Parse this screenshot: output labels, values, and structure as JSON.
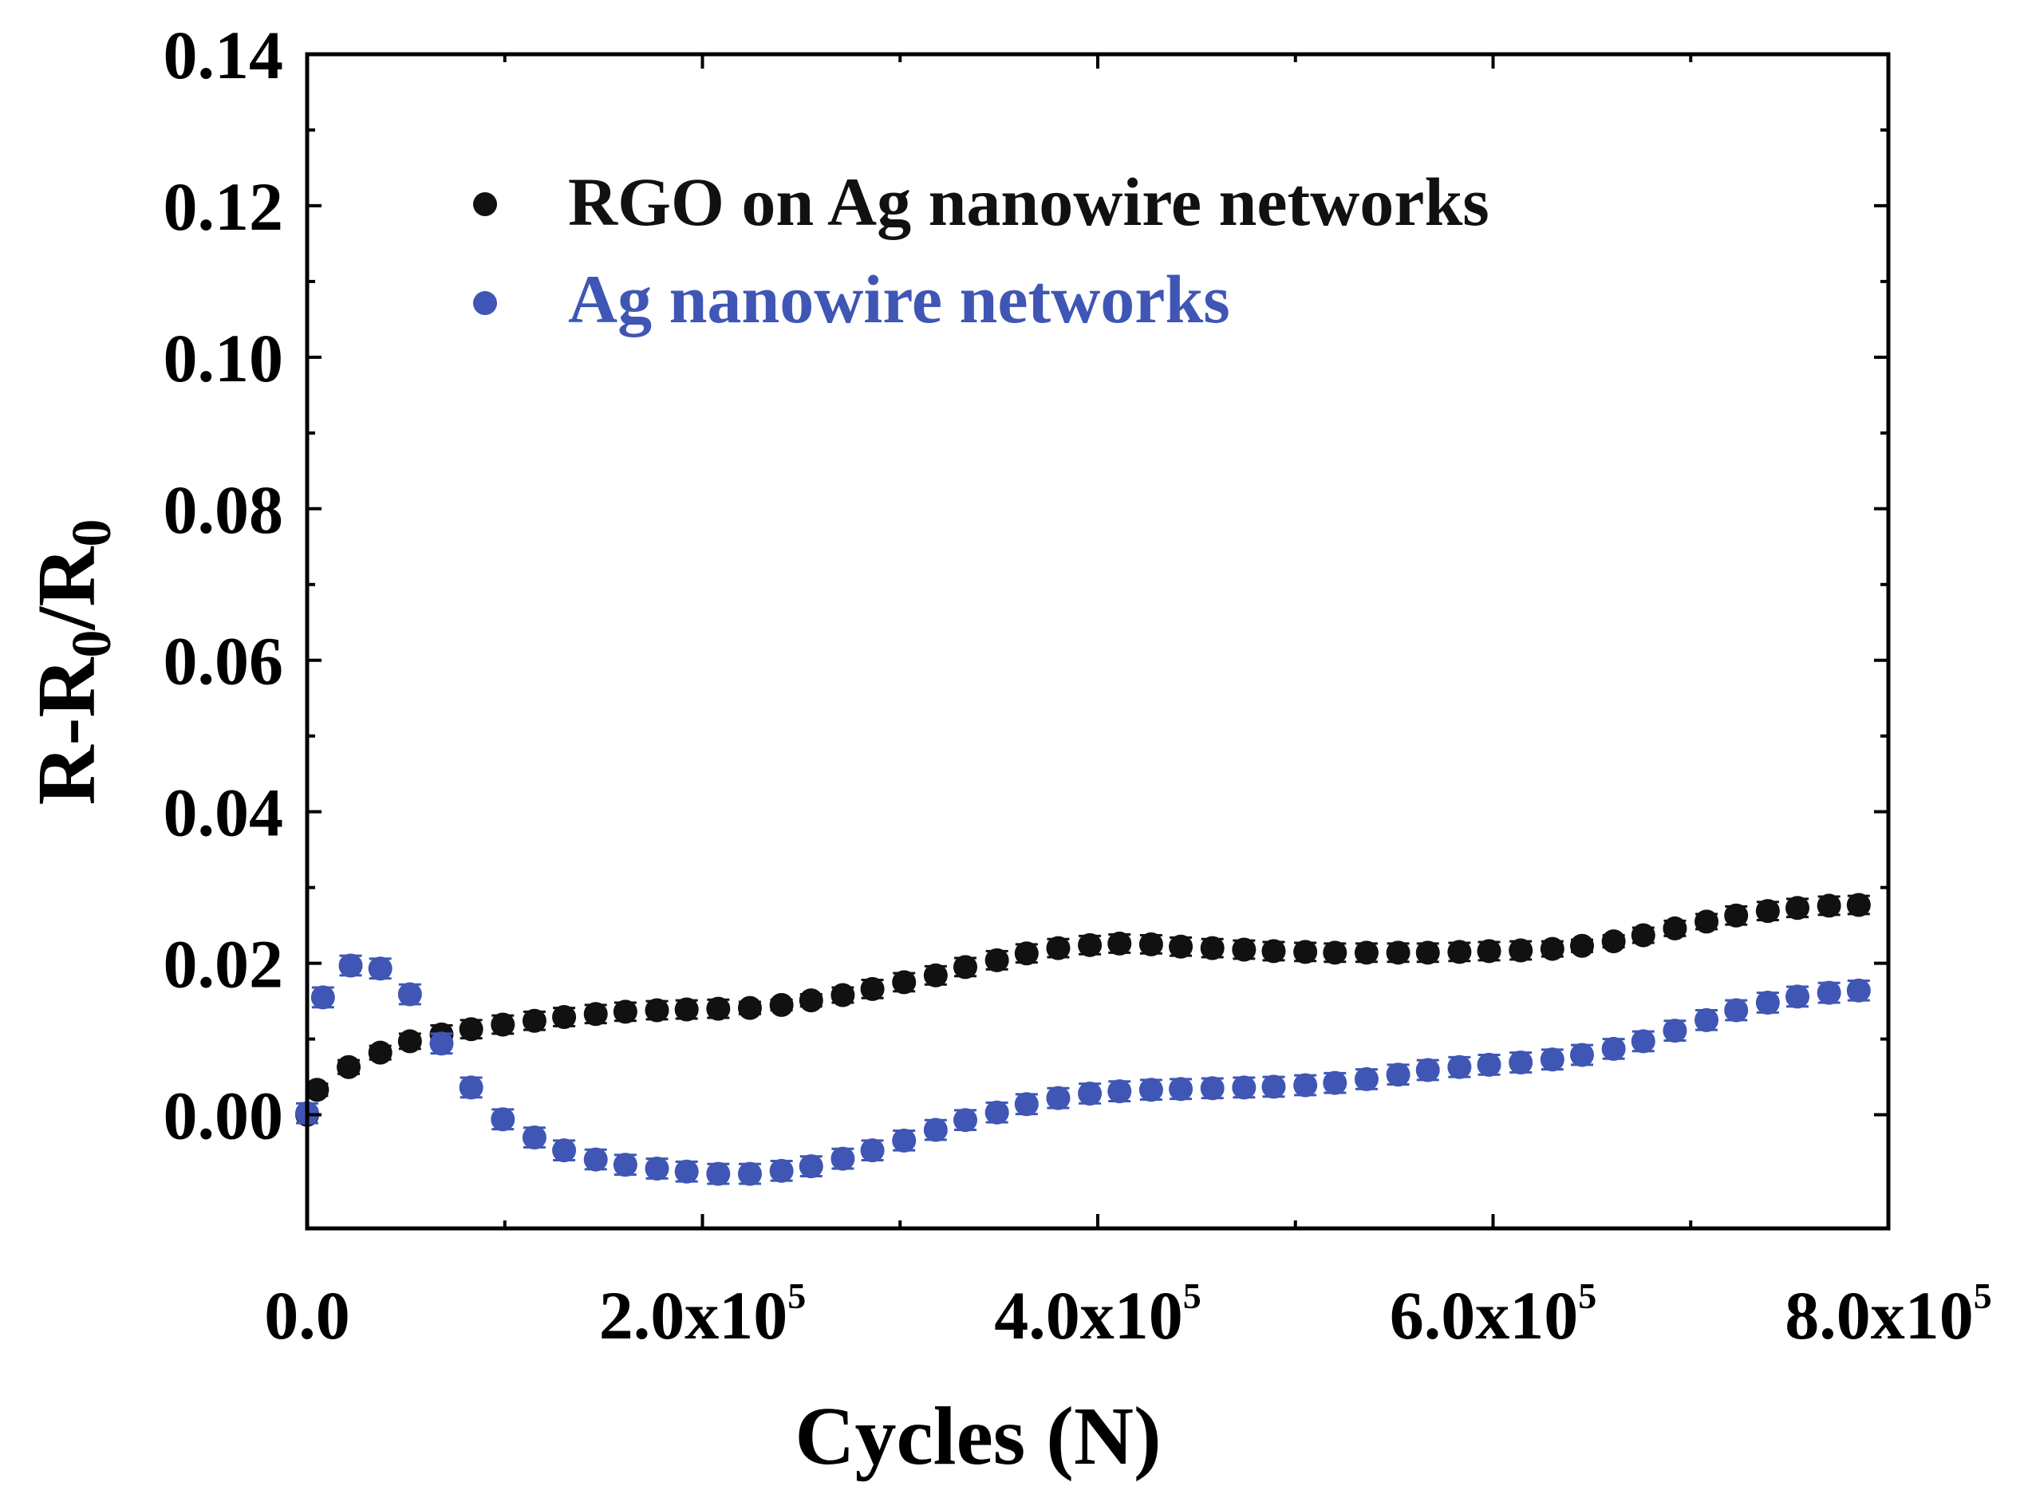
{
  "chart_data": {
    "type": "scatter",
    "title": "",
    "xlabel": "Cycles (N)",
    "ylabel": {
      "main": "R-R",
      "sub1": "0",
      "mid": "/R",
      "sub2": "0"
    },
    "xlim": [
      0,
      800000
    ],
    "ylim": [
      -0.015,
      0.14
    ],
    "x_ticks": [
      {
        "value": 0,
        "mantissa": "0.0",
        "exponent": ""
      },
      {
        "value": 200000,
        "mantissa": "2.0x10",
        "exponent": "5"
      },
      {
        "value": 400000,
        "mantissa": "4.0x10",
        "exponent": "5"
      },
      {
        "value": 600000,
        "mantissa": "6.0x10",
        "exponent": "5"
      },
      {
        "value": 800000,
        "mantissa": "8.0x10",
        "exponent": "5"
      }
    ],
    "y_ticks": [
      {
        "value": 0.0,
        "label": "0.00"
      },
      {
        "value": 0.02,
        "label": "0.02"
      },
      {
        "value": 0.04,
        "label": "0.04"
      },
      {
        "value": 0.06,
        "label": "0.06"
      },
      {
        "value": 0.08,
        "label": "0.08"
      },
      {
        "value": 0.1,
        "label": "0.10"
      },
      {
        "value": 0.12,
        "label": "0.12"
      },
      {
        "value": 0.14,
        "label": "0.14"
      }
    ],
    "legend_position": "top-left",
    "series": [
      {
        "name": "RGO on Ag nanowire networks",
        "color": "#111111",
        "x": [
          0,
          5000,
          21000,
          37000,
          52000,
          68000,
          83000,
          99000,
          115000,
          130000,
          146000,
          161000,
          177000,
          192000,
          208000,
          224000,
          240000,
          255000,
          271000,
          286000,
          302000,
          318000,
          333000,
          349000,
          364000,
          380000,
          396000,
          411000,
          427000,
          442000,
          458000,
          474000,
          489000,
          505000,
          520000,
          536000,
          552000,
          567000,
          583000,
          598000,
          614000,
          630000,
          645000,
          661000,
          676000,
          692000,
          708000,
          723000,
          739000,
          754000,
          770000,
          785000
        ],
        "y": [
          0.0,
          0.0033,
          0.0063,
          0.0082,
          0.0097,
          0.0106,
          0.0113,
          0.0119,
          0.0124,
          0.0129,
          0.0133,
          0.0136,
          0.0138,
          0.0139,
          0.014,
          0.0141,
          0.0145,
          0.0151,
          0.0158,
          0.0166,
          0.0175,
          0.0184,
          0.0195,
          0.0204,
          0.0213,
          0.022,
          0.0224,
          0.0226,
          0.0225,
          0.0222,
          0.022,
          0.0218,
          0.0216,
          0.0215,
          0.0214,
          0.0214,
          0.0214,
          0.0214,
          0.0215,
          0.0216,
          0.0217,
          0.0219,
          0.0223,
          0.0229,
          0.0237,
          0.0246,
          0.0255,
          0.0263,
          0.0269,
          0.0273,
          0.0276,
          0.0277
        ],
        "err": [
          0.0,
          0.0008,
          0.0009,
          0.0009,
          0.001,
          0.0012,
          0.0012,
          0.0012,
          0.0012,
          0.0012,
          0.0012,
          0.0012,
          0.0012,
          0.0012,
          0.0012,
          0.0008,
          0.0007,
          0.0008,
          0.001,
          0.0012,
          0.0012,
          0.0012,
          0.0012,
          0.0012,
          0.0012,
          0.0012,
          0.0012,
          0.0012,
          0.0012,
          0.0012,
          0.0012,
          0.0012,
          0.0012,
          0.0012,
          0.0012,
          0.0012,
          0.0012,
          0.0012,
          0.0012,
          0.0012,
          0.0012,
          0.001,
          0.0008,
          0.0008,
          0.001,
          0.001,
          0.001,
          0.0012,
          0.0012,
          0.0012,
          0.0012,
          0.0012
        ]
      },
      {
        "name": "Ag nanowire networks",
        "color": "#3f56b5",
        "x": [
          0,
          8000,
          22000,
          37000,
          52000,
          68000,
          83000,
          99000,
          115000,
          130000,
          146000,
          161000,
          177000,
          192000,
          208000,
          224000,
          240000,
          255000,
          271000,
          286000,
          302000,
          318000,
          333000,
          349000,
          364000,
          380000,
          396000,
          411000,
          427000,
          442000,
          458000,
          474000,
          489000,
          505000,
          520000,
          536000,
          552000,
          567000,
          583000,
          598000,
          614000,
          630000,
          645000,
          661000,
          676000,
          692000,
          708000,
          723000,
          739000,
          754000,
          770000,
          785000
        ],
        "y": [
          0.0002,
          0.0155,
          0.0197,
          0.0193,
          0.0159,
          0.0094,
          0.0036,
          -0.0006,
          -0.003,
          -0.0047,
          -0.0059,
          -0.0066,
          -0.0071,
          -0.0075,
          -0.0078,
          -0.0078,
          -0.0074,
          -0.0068,
          -0.0058,
          -0.0047,
          -0.0034,
          -0.002,
          -0.0007,
          0.0003,
          0.0014,
          0.0022,
          0.0028,
          0.0031,
          0.0033,
          0.0034,
          0.0035,
          0.0036,
          0.0037,
          0.0039,
          0.0042,
          0.0047,
          0.0053,
          0.0059,
          0.0063,
          0.0066,
          0.0069,
          0.0073,
          0.0079,
          0.0087,
          0.0097,
          0.0111,
          0.0125,
          0.0138,
          0.0148,
          0.0156,
          0.0161,
          0.0164
        ]
      }
    ]
  },
  "legend": {
    "items": [
      {
        "label": "RGO on Ag nanowire networks",
        "color": "#111111"
      },
      {
        "label": "Ag nanowire networks",
        "color": "#3f56b5"
      }
    ]
  }
}
